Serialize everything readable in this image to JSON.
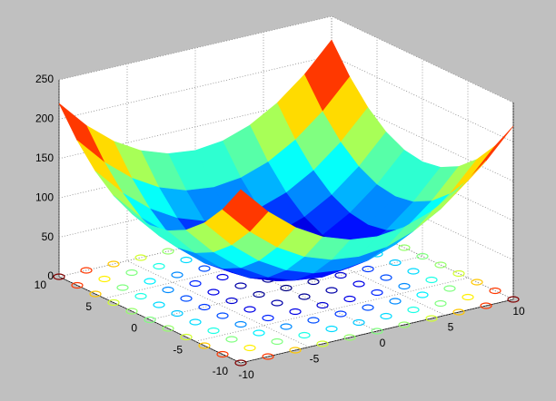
{
  "chart_data": {
    "type": "surface",
    "colormap": "jet",
    "x": [
      -10,
      -8,
      -6,
      -4,
      -2,
      0,
      2,
      4,
      6,
      8,
      10
    ],
    "y": [
      -10,
      -8,
      -6,
      -4,
      -2,
      0,
      2,
      4,
      6,
      8,
      10
    ],
    "z": [
      [
        220,
        184,
        156,
        136,
        124,
        120,
        124,
        136,
        156,
        184,
        220
      ],
      [
        184,
        148,
        120,
        100,
        88,
        84,
        88,
        100,
        120,
        148,
        184
      ],
      [
        156,
        120,
        92,
        72,
        60,
        56,
        60,
        72,
        92,
        120,
        156
      ],
      [
        136,
        100,
        72,
        52,
        40,
        36,
        40,
        52,
        72,
        100,
        136
      ],
      [
        124,
        88,
        60,
        40,
        28,
        24,
        28,
        40,
        60,
        88,
        124
      ],
      [
        120,
        84,
        56,
        36,
        24,
        20,
        24,
        36,
        56,
        84,
        120
      ],
      [
        124,
        88,
        60,
        40,
        28,
        24,
        28,
        40,
        60,
        88,
        124
      ],
      [
        136,
        100,
        72,
        52,
        40,
        36,
        40,
        52,
        72,
        100,
        136
      ],
      [
        156,
        120,
        92,
        72,
        60,
        56,
        60,
        72,
        92,
        120,
        156
      ],
      [
        184,
        148,
        120,
        100,
        88,
        84,
        88,
        100,
        120,
        148,
        184
      ],
      [
        220,
        184,
        156,
        136,
        124,
        120,
        124,
        136,
        156,
        184,
        220
      ]
    ],
    "xlim": [
      -10,
      10
    ],
    "ylim": [
      -10,
      10
    ],
    "zlim": [
      0,
      250
    ],
    "xticks": [
      -10,
      -5,
      0,
      5,
      10
    ],
    "yticks": [
      -10,
      -5,
      0,
      5,
      10
    ],
    "zticks": [
      0,
      50,
      100,
      150,
      200,
      250
    ],
    "grid": true,
    "floor_contour": true
  }
}
